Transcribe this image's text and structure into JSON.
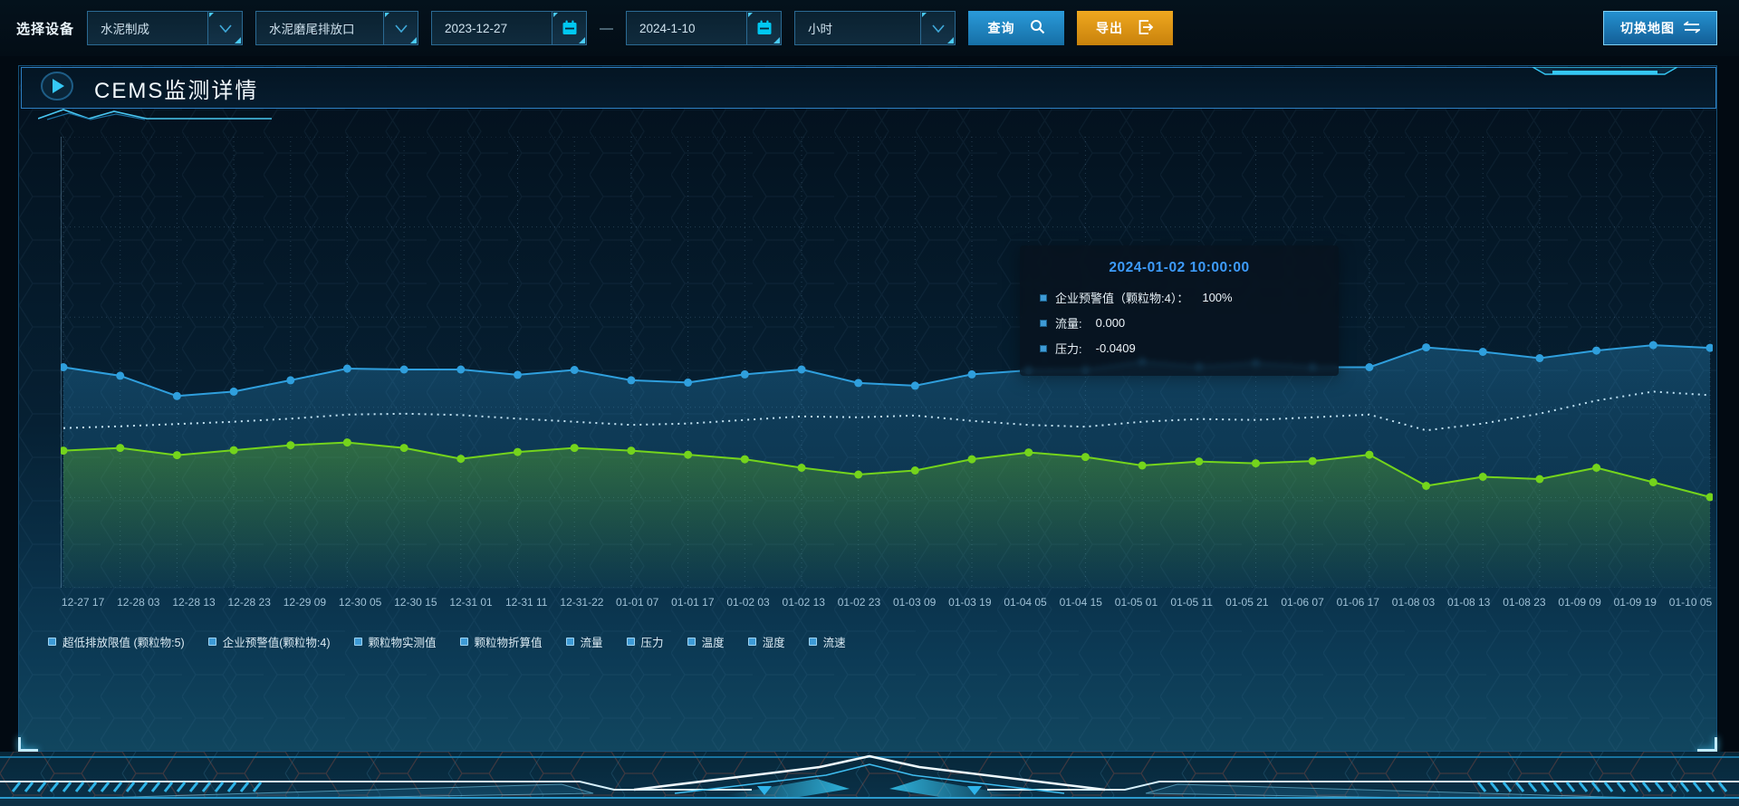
{
  "toolbar": {
    "label": "选择设备",
    "device_select": "水泥制成",
    "outlet_select": "水泥磨尾排放口",
    "date_start": "2023-12-27",
    "date_separator": "—",
    "date_end": "2024-1-10",
    "interval_select": "小时",
    "query_label": "查询",
    "export_label": "导出",
    "switch_map_label": "切换地图"
  },
  "panel": {
    "title": "CEMS监测详情"
  },
  "tooltip": {
    "title": "2024-01-02 10:00:00",
    "items": [
      {
        "label": "企业预警值（颗粒物:4）：",
        "value": "100%"
      },
      {
        "label": "流量:",
        "value": "0.000"
      },
      {
        "label": "压力:",
        "value": "-0.0409"
      }
    ]
  },
  "legend": [
    "超低排放限值 (颗粒物:5)",
    "企业预警值(颗粒物:4)",
    "颗粒物实测值",
    "颗粒物折算值",
    "流量",
    "压力",
    "温度",
    "湿度",
    "流速"
  ],
  "colors": {
    "accent_cyan": "#35c8f5",
    "query_button": "#1e87c6",
    "export_button": "#dd9514",
    "tooltip_title": "#3d9bfa",
    "legend_marker": "#3e9bd6",
    "series_flow": "#2f9fdd",
    "series_pressure": "#74d41c",
    "series_warning": "#e9f3f7"
  },
  "chart_data": {
    "type": "line",
    "title": "",
    "xlabel": "",
    "ylabel": "",
    "ylim": [
      0,
      100
    ],
    "grid": true,
    "legend_position": "bottom",
    "note": "y-axis unlabeled in source; values are normalized 0-100 of plot height. Tooltip real values at 2024-01-02 10:00:00 - 企业预警值(颗粒物:4): 100%, 流量: 0.000, 压力: -0.0409",
    "x": [
      "12-27 17",
      "12-28 03",
      "12-28 13",
      "12-28 23",
      "12-29 09",
      "12-30 05",
      "12-30 15",
      "12-31 01",
      "12-31 11",
      "12-31-22",
      "01-01 07",
      "01-01 17",
      "01-02 03",
      "01-02 13",
      "01-02 23",
      "01-03 09",
      "01-03 19",
      "01-04 05",
      "01-04 15",
      "01-05 01",
      "01-05 11",
      "01-05 21",
      "01-06 07",
      "01-06 17",
      "01-08 03",
      "01-08 13",
      "01-08 23",
      "01-09 09",
      "01-09 19",
      "01-10 05"
    ],
    "series": [
      {
        "name": "企业预警值(颗粒物:4)",
        "color": "#e9f3f7",
        "line": "dotted",
        "markers": false,
        "area": false,
        "values": [
          35.4,
          35.8,
          36.3,
          36.8,
          37.5,
          38.4,
          38.6,
          38.3,
          37.5,
          36.8,
          36.1,
          36.4,
          37.2,
          38.0,
          37.8,
          38.2,
          37.0,
          36.1,
          35.7,
          36.8,
          37.4,
          37.2,
          37.8,
          38.4,
          34.9,
          36.4,
          38.6,
          41.5,
          43.5,
          42.7
        ]
      },
      {
        "name": "流量",
        "color": "#2f9fdd",
        "line": "solid",
        "markers": true,
        "area": true,
        "area_from": "rgba(47,159,221,0.30)",
        "area_to": "rgba(47,159,221,0.02)",
        "values": [
          48.9,
          47.0,
          42.5,
          43.5,
          46.0,
          48.6,
          48.4,
          48.4,
          47.2,
          48.3,
          46.0,
          45.5,
          47.3,
          48.4,
          45.4,
          44.8,
          47.3,
          48.2,
          48.3,
          50.1,
          49.0,
          49.8,
          48.9,
          48.9,
          53.3,
          52.3,
          50.9,
          52.6,
          53.8,
          53.2
        ]
      },
      {
        "name": "压力",
        "color": "#74d41c",
        "line": "solid",
        "markers": true,
        "area": true,
        "area_from": "rgba(116,212,28,0.32)",
        "area_to": "rgba(116,212,28,0.02)",
        "values": [
          30.4,
          31.0,
          29.4,
          30.5,
          31.6,
          32.2,
          31.0,
          28.6,
          30.1,
          31.0,
          30.4,
          29.5,
          28.5,
          26.6,
          25.1,
          26.0,
          28.5,
          30.0,
          29.0,
          27.1,
          28.0,
          27.6,
          28.1,
          29.5,
          22.6,
          24.6,
          24.1,
          26.6,
          23.4,
          20.1
        ]
      }
    ]
  }
}
